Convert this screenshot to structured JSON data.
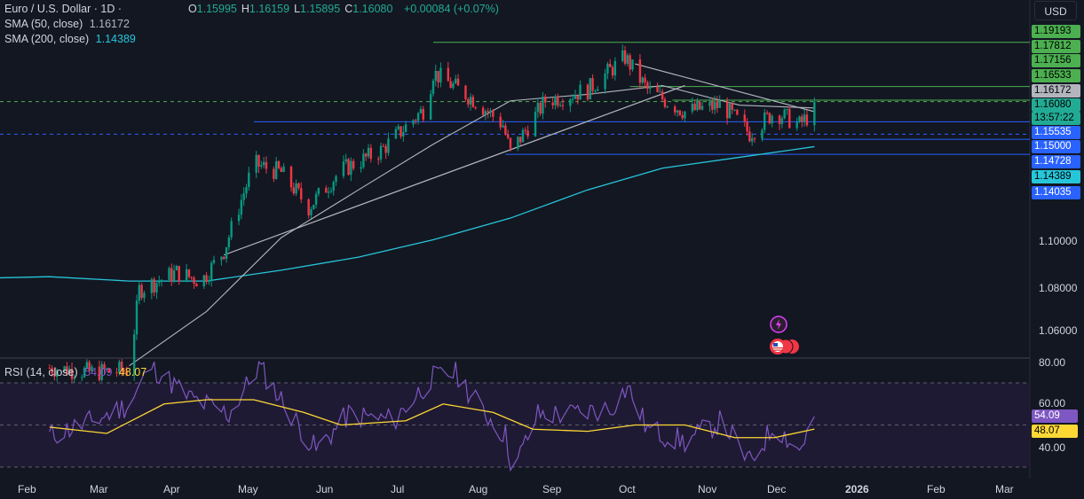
{
  "header": {
    "symbol": "Euro / U.S. Dollar · 1D · ",
    "ohlc": [
      {
        "k": "O",
        "v": "1.15995"
      },
      {
        "k": "H",
        "v": "1.16159"
      },
      {
        "k": "L",
        "v": "1.15895"
      },
      {
        "k": "C",
        "v": "1.16080"
      }
    ],
    "change": "+0.00084 (+0.07%)",
    "change_color": "#22ab94"
  },
  "indicators": {
    "sma50": {
      "label": "SMA (50, close)",
      "value": "1.16172"
    },
    "sma200": {
      "label": "SMA (200, close)",
      "value": "1.14389"
    },
    "rsi": {
      "label": "RSI (14, close)",
      "value1": "54.09",
      "value2": "48.07"
    }
  },
  "currency_button": "USD",
  "price_axis": {
    "levels": [
      "1.10000",
      "1.08000",
      "1.06000"
    ]
  },
  "price_tags": [
    {
      "text": "1.19193",
      "bg": "#4caf50",
      "fg": "#000000",
      "price": 1.19193
    },
    {
      "text": "1.17812",
      "bg": "#4caf50",
      "fg": "#000000",
      "price": 1.17812
    },
    {
      "text": "1.17156",
      "bg": "#4caf50",
      "fg": "#000000",
      "price": 1.17156
    },
    {
      "text": "1.16533",
      "bg": "#4caf50",
      "fg": "#000000",
      "price": 1.16533
    },
    {
      "text": "1.16172",
      "bg": "#b2b5be",
      "fg": "#000000",
      "price": 1.16172
    },
    {
      "text": "1.16080",
      "bg": "#22ab94",
      "fg": "#000000",
      "price": 1.1608
    },
    {
      "text": "13:57:22",
      "bg": "#22ab94",
      "fg": "#000000",
      "price": 1.1579
    },
    {
      "text": "1.15535",
      "bg": "#2962ff",
      "fg": "#ffffff",
      "price": 1.15535
    },
    {
      "text": "1.15000",
      "bg": "#2962ff",
      "fg": "#ffffff",
      "price": 1.15
    },
    {
      "text": "1.14728",
      "bg": "#2962ff",
      "fg": "#ffffff",
      "price": 1.14728
    },
    {
      "text": "1.14389",
      "bg": "#26c6da",
      "fg": "#000000",
      "price": 1.14389
    },
    {
      "text": "1.14035",
      "bg": "#2962ff",
      "fg": "#ffffff",
      "price": 1.14035
    }
  ],
  "rsi_axis": {
    "levels": [
      "80.00",
      "60.00",
      "40.00"
    ],
    "tags": [
      {
        "text": "54.09",
        "bg": "#7e57c2",
        "fg": "#ffffff",
        "value": 54.09
      },
      {
        "text": "48.07",
        "bg": "#fdd835",
        "fg": "#000000",
        "value": 48.07
      }
    ]
  },
  "time_axis": {
    "months": [
      "Feb",
      "Mar",
      "Apr",
      "May",
      "Jun",
      "Jul",
      "Aug",
      "Sep",
      "Oct",
      "Nov",
      "Dec",
      "2026",
      "Feb",
      "Mar"
    ]
  },
  "chart_data": {
    "type": "candlestick",
    "symbol": "Euro / U.S. Dollar",
    "timeframe": "1D",
    "ylim": [
      1.045,
      1.195
    ],
    "horizontal_levels": [
      {
        "price": 1.19193,
        "color": "#4caf50"
      },
      {
        "price": 1.17156,
        "color": "#4caf50"
      },
      {
        "price": 1.16533,
        "color": "#4caf50"
      },
      {
        "price": 1.15535,
        "color": "#2962ff"
      },
      {
        "price": 1.14728,
        "color": "#2962ff"
      },
      {
        "price": 1.14035,
        "color": "#2962ff"
      }
    ],
    "close_path": [
      [
        "2025-01-28",
        1.042
      ],
      [
        "2025-02-15",
        1.04
      ],
      [
        "2025-03-01",
        1.041
      ],
      [
        "2025-03-05",
        1.078
      ],
      [
        "2025-03-20",
        1.086
      ],
      [
        "2025-03-30",
        1.082
      ],
      [
        "2025-04-08",
        1.096
      ],
      [
        "2025-04-20",
        1.136
      ],
      [
        "2025-05-01",
        1.132
      ],
      [
        "2025-05-12",
        1.116
      ],
      [
        "2025-05-25",
        1.133
      ],
      [
        "2025-06-10",
        1.142
      ],
      [
        "2025-06-28",
        1.162
      ],
      [
        "2025-07-01",
        1.178
      ],
      [
        "2025-07-18",
        1.165
      ],
      [
        "2025-07-29",
        1.154
      ],
      [
        "2025-08-01",
        1.141
      ],
      [
        "2025-08-15",
        1.165
      ],
      [
        "2025-09-01",
        1.17
      ],
      [
        "2025-09-16",
        1.185
      ],
      [
        "2025-09-25",
        1.17
      ],
      [
        "2025-10-10",
        1.16
      ],
      [
        "2025-10-25",
        1.163
      ],
      [
        "2025-11-05",
        1.15
      ],
      [
        "2025-11-15",
        1.16
      ],
      [
        "2025-11-25",
        1.154
      ],
      [
        "2025-12-01",
        1.1608
      ]
    ],
    "sma50_path": [
      [
        "2025-03-01",
        1.043
      ],
      [
        "2025-04-01",
        1.068
      ],
      [
        "2025-05-01",
        1.102
      ],
      [
        "2025-06-01",
        1.124
      ],
      [
        "2025-07-01",
        1.145
      ],
      [
        "2025-08-01",
        1.165
      ],
      [
        "2025-09-01",
        1.168
      ],
      [
        "2025-10-01",
        1.172
      ],
      [
        "2025-11-01",
        1.163
      ],
      [
        "2025-12-01",
        1.1617
      ]
    ],
    "sma200_path": [
      [
        "2025-01-28",
        1.084
      ],
      [
        "2025-03-01",
        1.082
      ],
      [
        "2025-04-01",
        1.082
      ],
      [
        "2025-05-01",
        1.087
      ],
      [
        "2025-06-01",
        1.093
      ],
      [
        "2025-07-01",
        1.101
      ],
      [
        "2025-08-01",
        1.111
      ],
      [
        "2025-09-01",
        1.124
      ],
      [
        "2025-10-01",
        1.134
      ],
      [
        "2025-11-01",
        1.139
      ],
      [
        "2025-12-01",
        1.1439
      ]
    ],
    "trendlines": [
      {
        "from": [
          "2025-04-08",
          1.094
        ],
        "to": [
          "2025-10-10",
          1.172
        ],
        "color": "#b2b5be"
      },
      {
        "from": [
          "2025-09-20",
          1.182
        ],
        "to": [
          "2025-12-01",
          1.16
        ],
        "color": "#b2b5be"
      }
    ],
    "rsi_ylim": [
      28,
      82
    ],
    "rsi_levels": [
      70,
      50,
      30
    ],
    "rsi": [
      [
        "2025-01-28",
        45
      ],
      [
        "2025-02-15",
        52
      ],
      [
        "2025-03-01",
        60
      ],
      [
        "2025-03-10",
        78
      ],
      [
        "2025-03-25",
        63
      ],
      [
        "2025-04-10",
        55
      ],
      [
        "2025-04-22",
        78
      ],
      [
        "2025-05-05",
        55
      ],
      [
        "2025-05-15",
        38
      ],
      [
        "2025-05-28",
        55
      ],
      [
        "2025-06-15",
        52
      ],
      [
        "2025-06-30",
        72
      ],
      [
        "2025-07-10",
        75
      ],
      [
        "2025-07-20",
        58
      ],
      [
        "2025-07-30",
        45
      ],
      [
        "2025-08-02",
        28
      ],
      [
        "2025-08-12",
        55
      ],
      [
        "2025-08-25",
        55
      ],
      [
        "2025-09-10",
        58
      ],
      [
        "2025-09-17",
        68
      ],
      [
        "2025-09-25",
        48
      ],
      [
        "2025-10-10",
        42
      ],
      [
        "2025-10-25",
        52
      ],
      [
        "2025-11-05",
        32
      ],
      [
        "2025-11-15",
        50
      ],
      [
        "2025-11-25",
        38
      ],
      [
        "2025-12-01",
        54.09
      ]
    ],
    "rsi_ma": [
      [
        "2025-01-28",
        49
      ],
      [
        "2025-02-20",
        46
      ],
      [
        "2025-03-15",
        60
      ],
      [
        "2025-04-01",
        62
      ],
      [
        "2025-04-20",
        62
      ],
      [
        "2025-05-10",
        56
      ],
      [
        "2025-05-25",
        50
      ],
      [
        "2025-06-20",
        52
      ],
      [
        "2025-07-05",
        60
      ],
      [
        "2025-07-25",
        56
      ],
      [
        "2025-08-10",
        48
      ],
      [
        "2025-09-01",
        47
      ],
      [
        "2025-09-20",
        50
      ],
      [
        "2025-10-10",
        50
      ],
      [
        "2025-10-30",
        44
      ],
      [
        "2025-11-15",
        44
      ],
      [
        "2025-12-01",
        48.07
      ]
    ]
  }
}
